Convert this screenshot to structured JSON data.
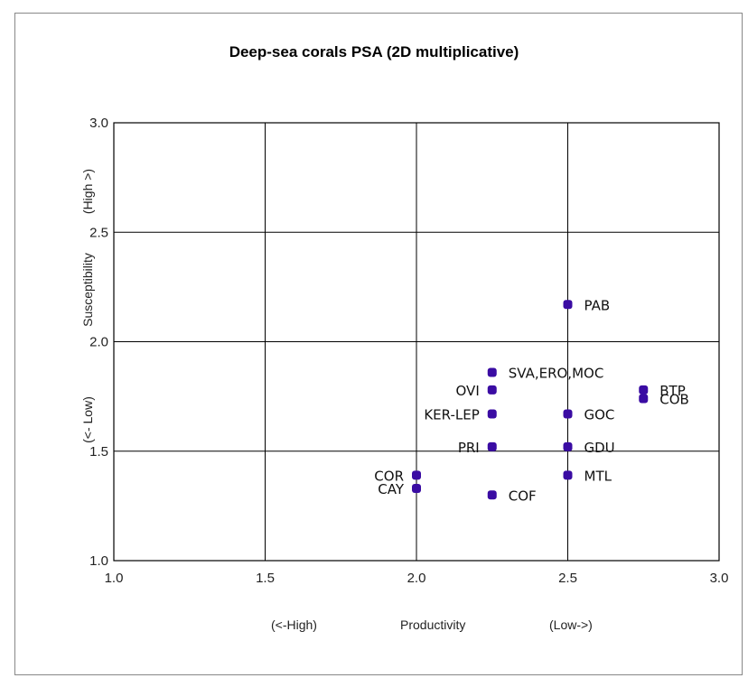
{
  "chart_data": {
    "type": "scatter",
    "title": "Deep-sea corals PSA (2D multiplicative)",
    "xlabel": "Productivity",
    "xlabel_left": "(<-High)",
    "xlabel_right": "(Low->)",
    "ylabel": "Susceptibility",
    "ylabel_bottom": "(<- Low)",
    "ylabel_top": "(High >)",
    "xlim": [
      1.0,
      3.0
    ],
    "ylim": [
      1.0,
      3.0
    ],
    "xticks": [
      "1.0",
      "1.5",
      "2.0",
      "2.5",
      "3.0"
    ],
    "yticks": [
      "1.0",
      "1.5",
      "2.0",
      "2.5",
      "3.0"
    ],
    "grid": true,
    "marker_color": "#3a0ca3",
    "points": [
      {
        "label": "PAB",
        "x": 2.5,
        "y": 2.17
      },
      {
        "label": "SVA,ERO,MOC",
        "x": 2.25,
        "y": 1.86
      },
      {
        "label": "OVI",
        "x": 2.25,
        "y": 1.78
      },
      {
        "label": "KER-LEP",
        "x": 2.25,
        "y": 1.67
      },
      {
        "label": "PRI",
        "x": 2.25,
        "y": 1.52
      },
      {
        "label": "COF",
        "x": 2.25,
        "y": 1.3
      },
      {
        "label": "GOC",
        "x": 2.5,
        "y": 1.67
      },
      {
        "label": "GDU",
        "x": 2.5,
        "y": 1.52
      },
      {
        "label": "MTL",
        "x": 2.5,
        "y": 1.39
      },
      {
        "label": "BTP",
        "x": 2.75,
        "y": 1.78
      },
      {
        "label": "COB",
        "x": 2.75,
        "y": 1.74
      },
      {
        "label": "COR",
        "x": 2.0,
        "y": 1.39
      },
      {
        "label": "CAY",
        "x": 2.0,
        "y": 1.33
      }
    ]
  }
}
